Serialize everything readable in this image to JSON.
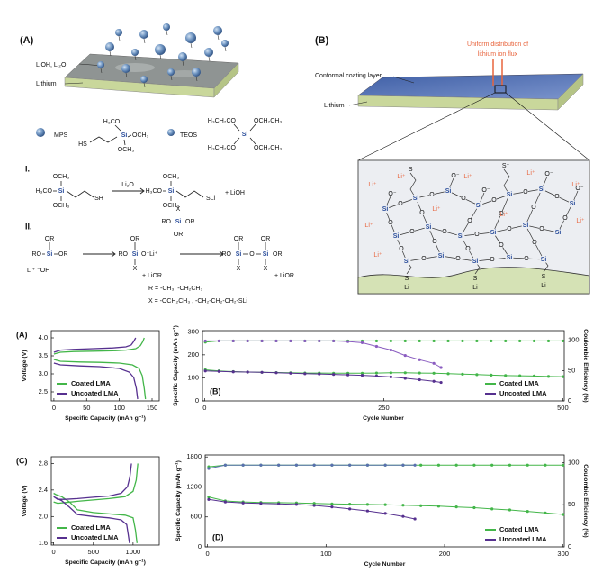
{
  "diagram": {
    "panel_a": {
      "label": "(A)",
      "surface_label": "LiOH, Li₂O",
      "substrate_label": "Lithium",
      "mps": "MPS",
      "teos": "TEOS"
    },
    "molecules": {
      "h3co": "H₃CO",
      "och3": "OCH₃",
      "si": "Si",
      "hs": "HS",
      "sh": "SH",
      "h3ch2co": "H₃CH₂CO",
      "och2ch3": "OCH₂CH₃"
    },
    "reaction_1": {
      "label": "I.",
      "reagent": "Li₂O",
      "product_group": "SLi",
      "byproduct": "+ LiOH"
    },
    "reaction_2": {
      "label": "II.",
      "ro": "RO",
      "or": "OR",
      "x": "X",
      "o": "O",
      "lioh": "Li⁺ ⁻OH",
      "oli": "O⁻Li⁺",
      "byproduct": "+ LiOR"
    },
    "definitions": [
      "R = -CH₃, -CH₂CH₃",
      "X = -OCH₂CH₃ , -CH₂-CH₂-CH₂-SLi"
    ],
    "panel_b": {
      "label": "(B)",
      "flux_annotation": [
        "Uniform distribution of",
        "lithium ion flux"
      ],
      "coating_label": "Conformal coating layer",
      "substrate_label": "Lithium"
    },
    "network": {
      "si": "Si",
      "o": "O",
      "o_minus": "O⁻",
      "li_ion": "Li⁺",
      "s": "S",
      "s_minus": "S⁻",
      "li": "Li"
    }
  },
  "chart_data": [
    {
      "type": "line",
      "panel_label": "(A)",
      "xlabel": "Specific Capacity (mAh g⁻¹)",
      "ylabel": "Voltage (V)",
      "xlim": [
        -4,
        161
      ],
      "xticks": [
        0,
        50,
        100,
        150
      ],
      "ylim": [
        2.25,
        4.2
      ],
      "yticks": [
        2.5,
        {
          "value": 3,
          "label": "3.0"
        },
        3.5,
        {
          "value": 4,
          "label": "4.0"
        }
      ],
      "legend": "lower left",
      "series": [
        {
          "name": "Coated LMA",
          "color": "#43b649",
          "x": [
            0,
            10,
            30,
            60,
            90,
            110,
            125,
            132,
            136,
            138,
            null,
            0,
            10,
            40,
            70,
            100,
            120,
            130,
            135,
            138,
            140
          ],
          "values": [
            3.55,
            3.6,
            3.62,
            3.63,
            3.64,
            3.66,
            3.7,
            3.78,
            3.9,
            4.0,
            null,
            3.4,
            3.35,
            3.33,
            3.32,
            3.3,
            3.25,
            3.15,
            2.95,
            2.6,
            2.3
          ]
        },
        {
          "name": "Uncoated LMA",
          "color": "#56308f",
          "x": [
            0,
            10,
            30,
            60,
            90,
            110,
            118,
            122,
            125,
            null,
            0,
            10,
            40,
            70,
            100,
            115,
            122,
            126,
            128
          ],
          "values": [
            3.6,
            3.66,
            3.68,
            3.7,
            3.72,
            3.75,
            3.8,
            3.9,
            4.0,
            null,
            3.3,
            3.25,
            3.22,
            3.2,
            3.15,
            3.05,
            2.9,
            2.6,
            2.3
          ]
        }
      ]
    },
    {
      "type": "scatter",
      "panel_label": "(B)",
      "xlabel": "Cycle Number",
      "ylabel": "Specific Capacity (mAh g⁻¹)",
      "y2label": "Coulombic Efficiency (%)",
      "xlim": [
        -3,
        502
      ],
      "xticks": [
        0,
        250,
        500
      ],
      "ylim": [
        0,
        305
      ],
      "yticks": [
        0,
        100,
        200,
        300
      ],
      "y2lim": [
        0,
        116
      ],
      "y2ticks": [
        0,
        50,
        100
      ],
      "legend": "lower right",
      "series": [
        {
          "name": "Coated LMA",
          "color": "#43b649",
          "x": [
            1,
            20,
            40,
            60,
            80,
            100,
            120,
            140,
            160,
            180,
            200,
            220,
            240,
            260,
            280,
            300,
            320,
            340,
            360,
            380,
            400,
            420,
            440,
            460,
            480,
            500
          ],
          "values": [
            135,
            130,
            127,
            125,
            124,
            123,
            122,
            121,
            121,
            120,
            120,
            120,
            121,
            122,
            122,
            121,
            120,
            118,
            116,
            114,
            112,
            110,
            109,
            108,
            106,
            105
          ]
        },
        {
          "name": "Uncoated LMA",
          "color": "#56308f",
          "x": [
            1,
            20,
            40,
            60,
            80,
            100,
            120,
            140,
            160,
            180,
            200,
            220,
            240,
            260,
            280,
            300,
            320,
            330
          ],
          "values": [
            130,
            128,
            126,
            125,
            124,
            122,
            120,
            118,
            117,
            115,
            113,
            111,
            108,
            104,
            98,
            92,
            85,
            80
          ]
        },
        {
          "color": "#43b649",
          "axis": "y2",
          "x": [
            1,
            20,
            40,
            60,
            80,
            100,
            120,
            140,
            160,
            180,
            200,
            220,
            240,
            260,
            280,
            300,
            320,
            340,
            360,
            380,
            400,
            420,
            440,
            460,
            480,
            500
          ],
          "values": [
            97,
            99,
            99,
            99,
            99,
            99,
            99,
            99,
            99,
            99,
            99,
            99,
            99,
            99,
            99,
            99,
            99,
            99,
            99,
            99,
            99,
            99,
            99,
            99,
            99,
            99
          ]
        },
        {
          "color": "#8a5cc0",
          "axis": "y2",
          "x": [
            1,
            20,
            40,
            60,
            80,
            100,
            120,
            140,
            160,
            180,
            200,
            220,
            240,
            260,
            280,
            300,
            320,
            330
          ],
          "values": [
            99,
            99,
            99,
            99,
            99,
            99,
            99,
            99,
            99,
            99,
            98,
            96,
            90,
            84,
            75,
            68,
            62,
            55
          ]
        }
      ]
    },
    {
      "type": "line",
      "panel_label": "(C)",
      "xlabel": "Specific Capacity (mAh g⁻¹)",
      "ylabel": "Voltage (V)",
      "xlim": [
        -30,
        1330
      ],
      "xticks": [
        0,
        500,
        1000
      ],
      "ylim": [
        1.57,
        2.9
      ],
      "yticks": [
        1.6,
        {
          "value": 2,
          "label": "2.0"
        },
        2.4,
        2.8
      ],
      "legend": "lower left",
      "series": [
        {
          "name": "Coated LMA",
          "color": "#43b649",
          "x": [
            0,
            50,
            150,
            300,
            500,
            700,
            900,
            1000,
            1040,
            1060,
            null,
            0,
            30,
            100,
            200,
            300,
            500,
            700,
            900,
            1000,
            1030,
            1050
          ],
          "values": [
            2.22,
            2.2,
            2.21,
            2.23,
            2.25,
            2.27,
            2.3,
            2.38,
            2.55,
            2.8,
            null,
            2.35,
            2.33,
            2.3,
            2.22,
            2.1,
            2.06,
            2.04,
            2.02,
            1.98,
            1.8,
            1.6
          ]
        },
        {
          "name": "Uncoated LMA",
          "color": "#56308f",
          "x": [
            0,
            50,
            150,
            300,
            500,
            700,
            850,
            930,
            960,
            980,
            null,
            0,
            30,
            100,
            200,
            300,
            500,
            700,
            850,
            920,
            940,
            955
          ],
          "values": [
            2.3,
            2.26,
            2.26,
            2.27,
            2.29,
            2.31,
            2.35,
            2.45,
            2.6,
            2.8,
            null,
            2.3,
            2.28,
            2.24,
            2.14,
            2.03,
            2.0,
            1.98,
            1.95,
            1.88,
            1.72,
            1.6
          ]
        }
      ]
    },
    {
      "type": "scatter",
      "panel_label": "(D)",
      "xlabel": "Cycle Number",
      "ylabel": "Specific Capacity (mAh g⁻¹)",
      "y2label": "Coulombic Efficiency (%)",
      "xlim": [
        -2,
        301
      ],
      "xticks": [
        0,
        100,
        200,
        300
      ],
      "ylim": [
        0,
        1840
      ],
      "yticks": [
        0,
        600,
        1200,
        1800
      ],
      "y2lim": [
        0,
        109
      ],
      "y2ticks": [
        0,
        50,
        100
      ],
      "legend": "lower right",
      "series": [
        {
          "name": "Coated LMA",
          "color": "#43b649",
          "x": [
            1,
            15,
            30,
            45,
            60,
            75,
            90,
            105,
            120,
            135,
            150,
            165,
            180,
            195,
            210,
            225,
            240,
            255,
            270,
            285,
            300
          ],
          "values": [
            1000,
            920,
            900,
            890,
            885,
            880,
            870,
            860,
            855,
            850,
            845,
            835,
            825,
            815,
            800,
            785,
            760,
            740,
            710,
            680,
            650
          ]
        },
        {
          "name": "Uncoated LMA",
          "color": "#56308f",
          "x": [
            1,
            15,
            30,
            45,
            60,
            75,
            90,
            105,
            120,
            135,
            150,
            165,
            175
          ],
          "values": [
            950,
            900,
            880,
            870,
            860,
            850,
            830,
            800,
            760,
            720,
            670,
            610,
            560
          ]
        },
        {
          "color": "#43b649",
          "axis": "y2",
          "x": [
            1,
            15,
            30,
            45,
            60,
            75,
            90,
            105,
            120,
            135,
            150,
            165,
            180,
            195,
            210,
            225,
            240,
            255,
            270,
            285,
            300
          ],
          "values": [
            95,
            97,
            97,
            97,
            97,
            97,
            97,
            97,
            97,
            97,
            97,
            97,
            97,
            97,
            97,
            97,
            97,
            97,
            97,
            97,
            97
          ]
        },
        {
          "color": "#5a6fb0",
          "axis": "y2",
          "x": [
            1,
            15,
            30,
            45,
            60,
            75,
            90,
            105,
            120,
            135,
            150,
            165,
            175
          ],
          "values": [
            93,
            97,
            97,
            97,
            97,
            97,
            97,
            97,
            97,
            97,
            97,
            97,
            97
          ]
        }
      ]
    }
  ]
}
